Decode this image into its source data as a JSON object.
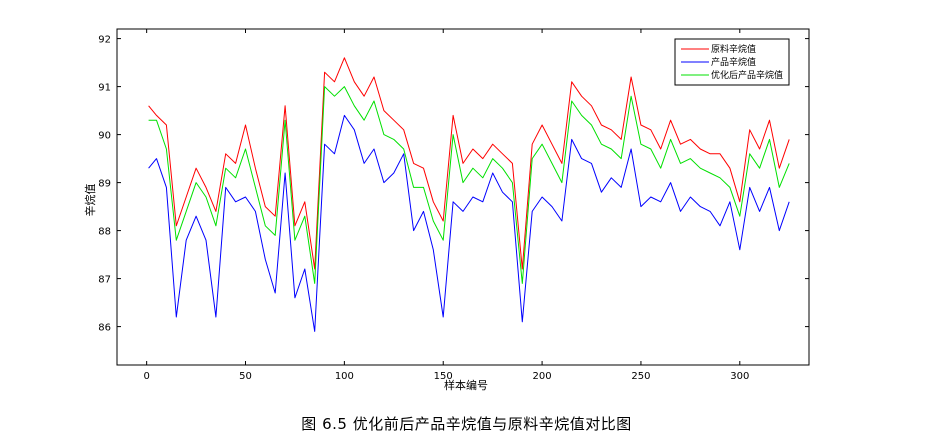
{
  "caption": "图 6.5   优化前后产品辛烷值与原料辛烷值对比图",
  "chart_data": {
    "type": "line",
    "title": "",
    "xlabel": "样本编号",
    "ylabel": "辛烷值",
    "xlim": [
      -15,
      335
    ],
    "ylim": [
      85.2,
      92.2
    ],
    "xticks": [
      0,
      50,
      100,
      150,
      200,
      250,
      300
    ],
    "yticks": [
      86,
      87,
      88,
      89,
      90,
      91,
      92
    ],
    "grid": false,
    "legend_position": "top-right",
    "x": [
      1,
      5,
      10,
      15,
      20,
      25,
      30,
      35,
      40,
      45,
      50,
      55,
      60,
      65,
      70,
      75,
      80,
      85,
      90,
      95,
      100,
      105,
      110,
      115,
      120,
      125,
      130,
      135,
      140,
      145,
      150,
      155,
      160,
      165,
      170,
      175,
      180,
      185,
      190,
      195,
      200,
      205,
      210,
      215,
      220,
      225,
      230,
      235,
      240,
      245,
      250,
      255,
      260,
      265,
      270,
      275,
      280,
      285,
      290,
      295,
      300,
      305,
      310,
      315,
      320,
      325
    ],
    "series": [
      {
        "name": "原料辛烷值",
        "color": "#ff0000",
        "values": [
          90.6,
          90.4,
          90.2,
          88.1,
          88.7,
          89.3,
          88.9,
          88.4,
          89.6,
          89.4,
          90.2,
          89.3,
          88.5,
          88.3,
          90.6,
          88.1,
          88.6,
          87.2,
          91.3,
          91.1,
          91.6,
          91.1,
          90.8,
          91.2,
          90.5,
          90.3,
          90.1,
          89.4,
          89.3,
          88.6,
          88.2,
          90.4,
          89.4,
          89.7,
          89.5,
          89.8,
          89.6,
          89.4,
          87.2,
          89.8,
          90.2,
          89.8,
          89.4,
          91.1,
          90.8,
          90.6,
          90.2,
          90.1,
          89.9,
          91.2,
          90.2,
          90.1,
          89.7,
          90.3,
          89.8,
          89.9,
          89.7,
          89.6,
          89.6,
          89.3,
          88.6,
          90.1,
          89.7,
          90.3,
          89.3,
          89.9
        ]
      },
      {
        "name": "产品辛烷值",
        "color": "#0000ff",
        "values": [
          89.3,
          89.5,
          88.9,
          86.2,
          87.8,
          88.3,
          87.8,
          86.2,
          88.9,
          88.6,
          88.7,
          88.4,
          87.4,
          86.7,
          89.2,
          86.6,
          87.2,
          85.9,
          89.8,
          89.6,
          90.4,
          90.1,
          89.4,
          89.7,
          89.0,
          89.2,
          89.6,
          88.0,
          88.4,
          87.6,
          86.2,
          88.6,
          88.4,
          88.7,
          88.6,
          89.2,
          88.8,
          88.6,
          86.1,
          88.4,
          88.7,
          88.5,
          88.2,
          89.9,
          89.5,
          89.4,
          88.8,
          89.1,
          88.9,
          89.7,
          88.5,
          88.7,
          88.6,
          89.0,
          88.4,
          88.7,
          88.5,
          88.4,
          88.1,
          88.6,
          87.6,
          88.9,
          88.4,
          88.9,
          88.0,
          88.6
        ]
      },
      {
        "name": "优化后产品辛烷值",
        "color": "#00e000",
        "values": [
          90.3,
          90.3,
          89.7,
          87.8,
          88.4,
          89.0,
          88.7,
          88.1,
          89.3,
          89.1,
          89.7,
          88.9,
          88.1,
          87.9,
          90.3,
          87.8,
          88.3,
          86.9,
          91.0,
          90.8,
          91.0,
          90.6,
          90.3,
          90.7,
          90.0,
          89.9,
          89.7,
          88.9,
          88.9,
          88.2,
          87.8,
          90.0,
          89.0,
          89.3,
          89.1,
          89.5,
          89.3,
          89.0,
          86.9,
          89.5,
          89.8,
          89.4,
          89.0,
          90.7,
          90.4,
          90.2,
          89.8,
          89.7,
          89.5,
          90.8,
          89.8,
          89.7,
          89.3,
          89.9,
          89.4,
          89.5,
          89.3,
          89.2,
          89.1,
          88.9,
          88.3,
          89.6,
          89.3,
          89.9,
          88.9,
          89.4
        ]
      }
    ]
  }
}
